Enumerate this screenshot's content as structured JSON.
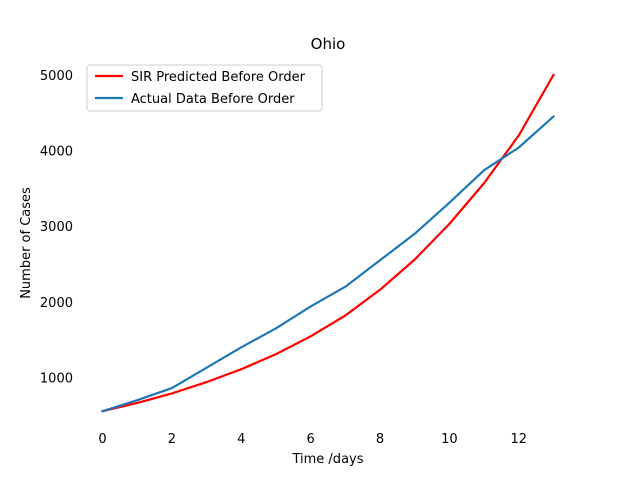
{
  "chart_data": {
    "type": "line",
    "title": "Ohio",
    "xlabel": "Time /days",
    "ylabel": "Number of Cases",
    "x": [
      0,
      1,
      2,
      3,
      4,
      5,
      6,
      7,
      8,
      9,
      10,
      11,
      12,
      13
    ],
    "xlim": [
      -0.65,
      13.65
    ],
    "ylim": [
      333,
      5223
    ],
    "x_ticks": [
      0,
      2,
      4,
      6,
      8,
      10,
      12
    ],
    "y_ticks": [
      1000,
      2000,
      3000,
      4000,
      5000
    ],
    "x_tick_labels": [
      "0",
      "2",
      "4",
      "6",
      "8",
      "10",
      "12"
    ],
    "y_tick_labels": [
      "1000",
      "2000",
      "3000",
      "4000",
      "5000"
    ],
    "grid": false,
    "legend_position": "top-left",
    "series": [
      {
        "name": "SIR Predicted Before Order",
        "color": "#ff0000",
        "values": [
          555,
          665,
          790,
          940,
          1110,
          1310,
          1545,
          1820,
          2160,
          2560,
          3030,
          3570,
          4200,
          5000
        ]
      },
      {
        "name": "Actual Data Before Order",
        "color": "#1f77b4",
        "values": [
          555,
          700,
          860,
          1130,
          1400,
          1650,
          1940,
          2200,
          2550,
          2900,
          3310,
          3740,
          4040,
          4450
        ]
      }
    ]
  }
}
